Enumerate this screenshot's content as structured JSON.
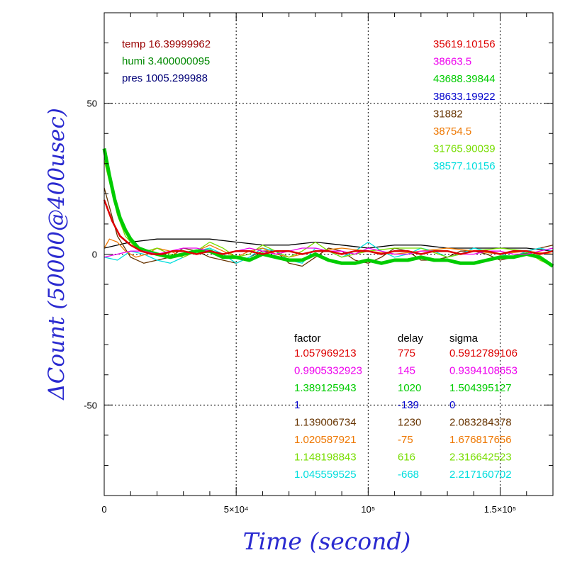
{
  "chart_data": {
    "type": "line",
    "xlabel": "Time (second)",
    "ylabel": "ΔCount (50000@400usec)",
    "xlim": [
      0,
      170000
    ],
    "ylim": [
      -80,
      80
    ],
    "x_ticks": [
      {
        "value": 0,
        "label": "0"
      },
      {
        "value": 50000,
        "label": "5×10⁴"
      },
      {
        "value": 100000,
        "label": "10⁵"
      },
      {
        "value": 150000,
        "label": "1.5×10⁵"
      }
    ],
    "y_ticks": [
      {
        "value": 50,
        "label": "50"
      },
      {
        "value": 0,
        "label": "0"
      },
      {
        "value": -50,
        "label": "-50"
      }
    ],
    "grid": true,
    "env": [
      {
        "text": "temp 16.39999962",
        "color": "#990000"
      },
      {
        "text": "humi 3.400000095",
        "color": "#008800"
      },
      {
        "text": "pres 1005.299988",
        "color": "#000077"
      }
    ],
    "means": [
      {
        "text": "35619.10156",
        "color": "#dd0000"
      },
      {
        "text": "38663.5",
        "color": "#ee00ee"
      },
      {
        "text": "43688.39844",
        "color": "#00cc00"
      },
      {
        "text": "38633.19922",
        "color": "#0000cc"
      },
      {
        "text": "31882",
        "color": "#663300"
      },
      {
        "text": "38754.5",
        "color": "#ee7700"
      },
      {
        "text": "31765.90039",
        "color": "#77dd00"
      },
      {
        "text": "38577.10156",
        "color": "#00dddd"
      }
    ],
    "param_headers": [
      "factor",
      "delay",
      "sigma"
    ],
    "params": [
      {
        "factor": "1.057969213",
        "delay": "775",
        "sigma": "0.5912789106",
        "color": "#dd0000"
      },
      {
        "factor": "0.9905332923",
        "delay": "145",
        "sigma": "0.9394108653",
        "color": "#ee00ee"
      },
      {
        "factor": "1.389125943",
        "delay": "1020",
        "sigma": "1.504395127",
        "color": "#00cc00"
      },
      {
        "factor": "1",
        "delay": "-139",
        "sigma": "0",
        "color": "#0000cc"
      },
      {
        "factor": "1.139006734",
        "delay": "1230",
        "sigma": "2.083284378",
        "color": "#663300"
      },
      {
        "factor": "1.020587921",
        "delay": "-75",
        "sigma": "1.676817656",
        "color": "#ee7700"
      },
      {
        "factor": "1.148198843",
        "delay": "616",
        "sigma": "2.316642523",
        "color": "#77dd00"
      },
      {
        "factor": "1.045559525",
        "delay": "-668",
        "sigma": "2.217160702",
        "color": "#00dddd"
      }
    ],
    "series": [
      {
        "color": "#000000",
        "x": [
          0,
          10000,
          20000,
          30000,
          40000,
          50000,
          60000,
          70000,
          80000,
          90000,
          100000,
          110000,
          120000,
          130000,
          140000,
          150000,
          160000,
          170000
        ],
        "y": [
          2,
          4,
          5,
          5,
          5,
          4,
          3,
          3,
          4,
          3,
          2,
          3,
          3,
          2,
          2,
          2,
          2,
          1
        ]
      },
      {
        "color": "#663300",
        "x": [
          0,
          5000,
          10000,
          15000,
          20000,
          25000,
          30000,
          35000,
          40000,
          45000,
          50000,
          55000,
          60000,
          65000,
          70000,
          75000,
          80000,
          85000,
          90000,
          95000,
          100000,
          105000,
          110000,
          115000,
          120000,
          125000,
          130000,
          135000,
          140000,
          145000,
          150000,
          155000,
          160000,
          165000,
          170000
        ],
        "y": [
          22,
          6,
          -1,
          -3,
          -2,
          -1,
          2,
          1,
          -1,
          -2,
          -3,
          -1,
          1,
          1,
          -3,
          -4,
          -1,
          2,
          1,
          -2,
          -3,
          -1,
          2,
          1,
          -2,
          -2,
          -1,
          1,
          1,
          0,
          -2,
          -1,
          1,
          2,
          3
        ]
      },
      {
        "color": "#00dddd",
        "x": [
          0,
          5000,
          10000,
          15000,
          20000,
          25000,
          30000,
          35000,
          40000,
          45000,
          50000,
          55000,
          60000,
          65000,
          70000,
          75000,
          80000,
          85000,
          90000,
          95000,
          100000,
          105000,
          110000,
          115000,
          120000,
          125000,
          130000,
          135000,
          140000,
          145000,
          150000,
          155000,
          160000,
          165000,
          170000
        ],
        "y": [
          -1,
          -2,
          1,
          0,
          -2,
          -3,
          -1,
          1,
          2,
          0,
          -3,
          -1,
          2,
          1,
          -2,
          -3,
          2,
          1,
          -1,
          1,
          4,
          1,
          -1,
          0,
          2,
          1,
          -1,
          0,
          2,
          1,
          0,
          -1,
          1,
          2,
          1
        ]
      },
      {
        "color": "#ee7700",
        "x": [
          0,
          2000,
          5000,
          8000,
          12000,
          16000,
          20000,
          25000,
          30000,
          35000,
          40000,
          45000,
          50000,
          55000,
          60000,
          65000,
          70000,
          80000,
          90000,
          100000,
          110000,
          120000,
          130000,
          140000,
          150000,
          160000,
          170000
        ],
        "y": [
          2,
          5,
          4,
          1,
          -1,
          0,
          2,
          1,
          -1,
          1,
          3,
          1,
          -1,
          1,
          2,
          0,
          -1,
          1,
          2,
          1,
          0,
          1,
          2,
          1,
          0,
          1,
          0
        ]
      },
      {
        "color": "#77dd00",
        "x": [
          0,
          2000,
          5000,
          8000,
          12000,
          16000,
          20000,
          25000,
          30000,
          35000,
          40000,
          45000,
          50000,
          55000,
          60000,
          65000,
          70000,
          75000,
          80000,
          85000,
          90000,
          100000,
          110000,
          120000,
          130000,
          140000,
          150000,
          160000,
          165000,
          170000
        ],
        "y": [
          31,
          24,
          13,
          6,
          2,
          1,
          2,
          0,
          -1,
          1,
          4,
          2,
          -1,
          0,
          3,
          1,
          -1,
          1,
          4,
          1,
          -1,
          1,
          2,
          2,
          -1,
          1,
          2,
          1,
          -2,
          -4
        ]
      },
      {
        "color": "#00cc00",
        "width": 5,
        "x": [
          0,
          2000,
          4000,
          6000,
          8000,
          10000,
          13000,
          16000,
          20000,
          25000,
          30000,
          35000,
          40000,
          45000,
          50000,
          55000,
          60000,
          65000,
          70000,
          75000,
          80000,
          85000,
          90000,
          95000,
          100000,
          105000,
          110000,
          115000,
          120000,
          125000,
          130000,
          135000,
          140000,
          145000,
          150000,
          155000,
          160000,
          165000,
          170000
        ],
        "y": [
          35,
          26,
          18,
          12,
          8,
          5,
          2,
          1,
          0,
          -1,
          0,
          1,
          1,
          -1,
          -1,
          -2,
          0,
          -1,
          -2,
          -2,
          0,
          -2,
          -3,
          -3,
          -2,
          -3,
          -2,
          -2,
          -1,
          -2,
          -2,
          -3,
          -3,
          -2,
          -1,
          -1,
          0,
          -1,
          -4
        ]
      },
      {
        "color": "#ee00ee",
        "x": [
          0,
          5000,
          10000,
          15000,
          20000,
          25000,
          30000,
          35000,
          40000,
          45000,
          50000,
          55000,
          60000,
          65000,
          70000,
          75000,
          80000,
          85000,
          90000,
          95000,
          100000,
          105000,
          110000,
          115000,
          120000,
          125000,
          130000,
          135000,
          140000,
          145000,
          150000,
          155000,
          160000,
          165000,
          170000
        ],
        "y": [
          -1,
          0,
          1,
          1,
          0,
          1,
          2,
          2,
          1,
          0,
          1,
          2,
          1,
          0,
          1,
          2,
          2,
          1,
          1,
          0,
          2,
          1,
          0,
          0,
          1,
          1,
          1,
          0,
          0,
          1,
          1,
          0,
          0,
          1,
          2
        ]
      },
      {
        "color": "#dd0000",
        "width": 2.5,
        "x": [
          0,
          3000,
          6000,
          10000,
          14000,
          18000,
          22000,
          26000,
          30000,
          35000,
          40000,
          45000,
          50000,
          55000,
          60000,
          65000,
          70000,
          75000,
          80000,
          85000,
          90000,
          95000,
          100000,
          105000,
          110000,
          115000,
          120000,
          125000,
          130000,
          135000,
          140000,
          145000,
          150000,
          155000,
          160000,
          165000,
          170000
        ],
        "y": [
          18,
          11,
          6,
          3,
          1,
          0,
          0,
          1,
          1,
          0,
          1,
          0,
          1,
          1,
          0,
          1,
          1,
          0,
          1,
          1,
          0,
          1,
          1,
          0,
          1,
          1,
          0,
          1,
          1,
          0,
          1,
          1,
          0,
          1,
          1,
          0,
          1
        ]
      }
    ]
  }
}
